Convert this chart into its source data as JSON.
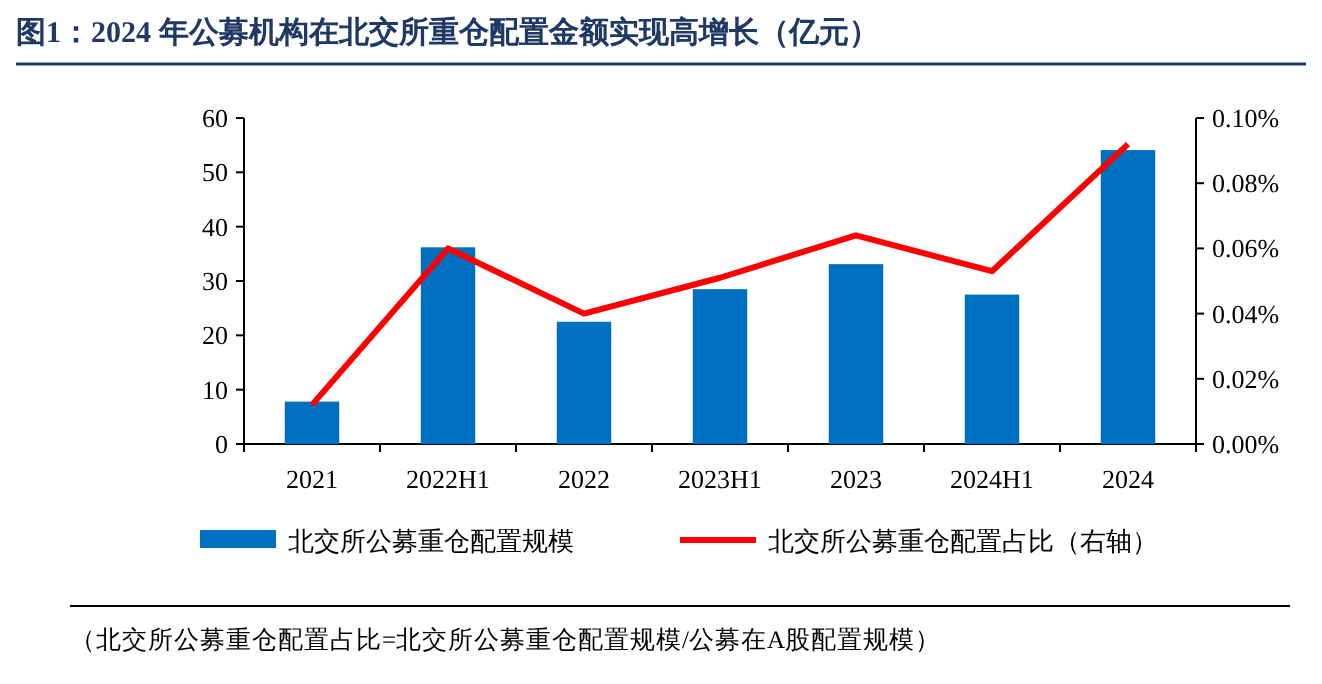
{
  "chart_data": {
    "type": "bar",
    "title": "图1：2024 年公募机构在北交所重仓配置金额实现高增长（亿元）",
    "categories": [
      "2021",
      "2022H1",
      "2022",
      "2023H1",
      "2023",
      "2024H1",
      "2024"
    ],
    "series": [
      {
        "name": "北交所公募重仓配置规模",
        "color": "#0070c0",
        "values": [
          7.8,
          36.2,
          22.5,
          28.5,
          33.1,
          27.5,
          54.1
        ]
      },
      {
        "name": "北交所公募重仓配置占比（右轴）",
        "type": "line",
        "axis": "y2",
        "color": "#ff0000",
        "values": [
          0.012,
          0.06,
          0.04,
          0.051,
          0.064,
          0.053,
          0.092
        ]
      }
    ],
    "ylim": [
      0,
      60
    ],
    "yticks": [
      0,
      10,
      20,
      30,
      40,
      50,
      60
    ],
    "y2lim": [
      0,
      0.1
    ],
    "y2ticks": [
      {
        "value": 0,
        "label": "0.00%"
      },
      {
        "value": 0.02,
        "label": "0.02%"
      },
      {
        "value": 0.04,
        "label": "0.04%"
      },
      {
        "value": 0.06,
        "label": "0.06%"
      },
      {
        "value": 0.08,
        "label": "0.08%"
      },
      {
        "value": 0.1,
        "label": "0.10%"
      }
    ],
    "legend": "bottom",
    "marker": "none",
    "annotations": [
      "（北交所公募重仓配置占比=北交所公募重仓配置规模/公募在A股配置规模）"
    ]
  }
}
